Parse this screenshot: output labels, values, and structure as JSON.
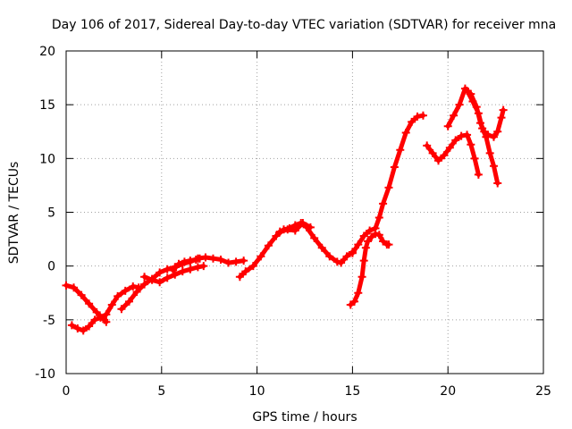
{
  "chart_data": {
    "type": "scatter",
    "title": "Day 106 of 2017, Sidereal Day-to-day VTEC variation (SDTVAR) for receiver mna",
    "xlabel": "GPS time / hours",
    "ylabel": "SDTVAR / TECUs",
    "xlim": [
      0,
      25
    ],
    "ylim": [
      -10,
      20
    ],
    "xticks": [
      "0",
      "5",
      "10",
      "15",
      "20",
      "25"
    ],
    "yticks": [
      "-10",
      "-5",
      "0",
      "5",
      "10",
      "15",
      "20"
    ],
    "grid": true,
    "legend": "none",
    "marker": "plus",
    "color": "#ff0000",
    "series": [
      {
        "points": [
          [
            0.0,
            -1.8
          ],
          [
            0.4,
            -2.0
          ],
          [
            0.8,
            -2.7
          ],
          [
            1.2,
            -3.5
          ],
          [
            1.6,
            -4.3
          ],
          [
            2.0,
            -5.0
          ],
          [
            2.1,
            -5.2
          ]
        ]
      },
      {
        "points": [
          [
            0.3,
            -5.5
          ],
          [
            0.6,
            -5.8
          ],
          [
            0.9,
            -6.0
          ],
          [
            1.2,
            -5.6
          ],
          [
            1.5,
            -5.0
          ],
          [
            1.8,
            -4.8
          ],
          [
            2.1,
            -4.5
          ],
          [
            2.4,
            -3.6
          ],
          [
            2.7,
            -2.8
          ],
          [
            3.1,
            -2.3
          ],
          [
            3.5,
            -1.9
          ],
          [
            3.8,
            -2.0
          ]
        ]
      },
      {
        "points": [
          [
            2.9,
            -4.0
          ],
          [
            3.3,
            -3.3
          ],
          [
            3.7,
            -2.4
          ],
          [
            4.1,
            -1.7
          ],
          [
            4.5,
            -1.2
          ],
          [
            4.9,
            -0.6
          ],
          [
            5.3,
            -0.3
          ],
          [
            5.7,
            -0.1
          ],
          [
            6.1,
            0.2
          ],
          [
            6.5,
            0.4
          ],
          [
            6.9,
            0.7
          ],
          [
            7.3,
            0.8
          ],
          [
            7.7,
            0.7
          ],
          [
            8.1,
            0.6
          ],
          [
            8.5,
            0.3
          ],
          [
            8.9,
            0.4
          ],
          [
            9.3,
            0.5
          ]
        ]
      },
      {
        "points": [
          [
            4.1,
            -1.0
          ],
          [
            4.5,
            -1.3
          ],
          [
            4.9,
            -1.5
          ],
          [
            5.3,
            -1.1
          ],
          [
            5.7,
            -0.8
          ],
          [
            6.1,
            -0.5
          ],
          [
            6.5,
            -0.3
          ],
          [
            6.9,
            -0.1
          ],
          [
            7.2,
            0.0
          ]
        ]
      },
      {
        "points": [
          [
            5.6,
            -0.4
          ],
          [
            5.9,
            0.2
          ],
          [
            6.2,
            0.4
          ],
          [
            6.5,
            0.5
          ],
          [
            6.8,
            0.6
          ],
          [
            7.0,
            0.7
          ]
        ]
      },
      {
        "points": [
          [
            9.1,
            -1.0
          ],
          [
            9.4,
            -0.5
          ],
          [
            9.8,
            0.0
          ],
          [
            10.2,
            0.9
          ],
          [
            10.6,
            1.9
          ],
          [
            11.0,
            2.8
          ],
          [
            11.4,
            3.4
          ],
          [
            11.7,
            3.5
          ],
          [
            12.0,
            3.8
          ],
          [
            12.3,
            4.0
          ],
          [
            12.6,
            3.6
          ],
          [
            13.0,
            2.6
          ],
          [
            13.4,
            1.7
          ],
          [
            13.8,
            0.9
          ],
          [
            14.2,
            0.4
          ],
          [
            14.4,
            0.3
          ],
          [
            14.7,
            0.9
          ],
          [
            15.0,
            1.3
          ]
        ]
      },
      {
        "points": [
          [
            11.2,
            3.2
          ],
          [
            11.6,
            3.4
          ],
          [
            12.0,
            3.3
          ],
          [
            12.4,
            4.0
          ],
          [
            12.8,
            3.6
          ]
        ]
      },
      {
        "points": [
          [
            14.9,
            -3.6
          ],
          [
            15.1,
            -3.3
          ],
          [
            15.3,
            -2.5
          ],
          [
            15.5,
            -1.0
          ],
          [
            15.6,
            0.5
          ],
          [
            15.7,
            1.7
          ],
          [
            15.8,
            2.3
          ],
          [
            16.0,
            2.7
          ],
          [
            16.2,
            3.0
          ],
          [
            16.4,
            2.9
          ],
          [
            16.6,
            2.3
          ],
          [
            16.8,
            2.0
          ],
          [
            16.9,
            2.0
          ]
        ]
      },
      {
        "points": [
          [
            15.0,
            1.2
          ],
          [
            15.3,
            2.0
          ],
          [
            15.6,
            2.8
          ],
          [
            15.9,
            3.3
          ],
          [
            16.2,
            3.5
          ],
          [
            16.4,
            4.5
          ],
          [
            16.6,
            5.8
          ],
          [
            16.9,
            7.3
          ],
          [
            17.2,
            9.2
          ],
          [
            17.5,
            10.8
          ],
          [
            17.8,
            12.4
          ],
          [
            18.1,
            13.4
          ],
          [
            18.4,
            13.9
          ],
          [
            18.7,
            14.0
          ]
        ]
      },
      {
        "points": [
          [
            18.9,
            11.2
          ],
          [
            19.2,
            10.5
          ],
          [
            19.5,
            9.8
          ],
          [
            19.8,
            10.3
          ],
          [
            20.1,
            11.0
          ],
          [
            20.4,
            11.7
          ],
          [
            20.7,
            12.1
          ],
          [
            21.0,
            12.2
          ],
          [
            21.2,
            11.3
          ],
          [
            21.4,
            10.0
          ],
          [
            21.6,
            8.5
          ]
        ]
      },
      {
        "points": [
          [
            20.0,
            13.0
          ],
          [
            20.3,
            14.0
          ],
          [
            20.6,
            15.0
          ],
          [
            20.9,
            16.5
          ],
          [
            21.2,
            16.0
          ],
          [
            21.5,
            14.8
          ],
          [
            21.7,
            13.3
          ],
          [
            21.9,
            12.5
          ],
          [
            22.1,
            12.2
          ],
          [
            22.4,
            12.0
          ],
          [
            22.6,
            12.5
          ],
          [
            22.8,
            13.8
          ],
          [
            22.9,
            14.5
          ]
        ]
      },
      {
        "points": [
          [
            21.0,
            16.3
          ],
          [
            21.3,
            15.3
          ],
          [
            21.6,
            14.2
          ],
          [
            21.8,
            12.8
          ],
          [
            22.0,
            12.0
          ],
          [
            22.2,
            10.5
          ],
          [
            22.4,
            9.3
          ],
          [
            22.6,
            7.7
          ]
        ]
      }
    ]
  }
}
